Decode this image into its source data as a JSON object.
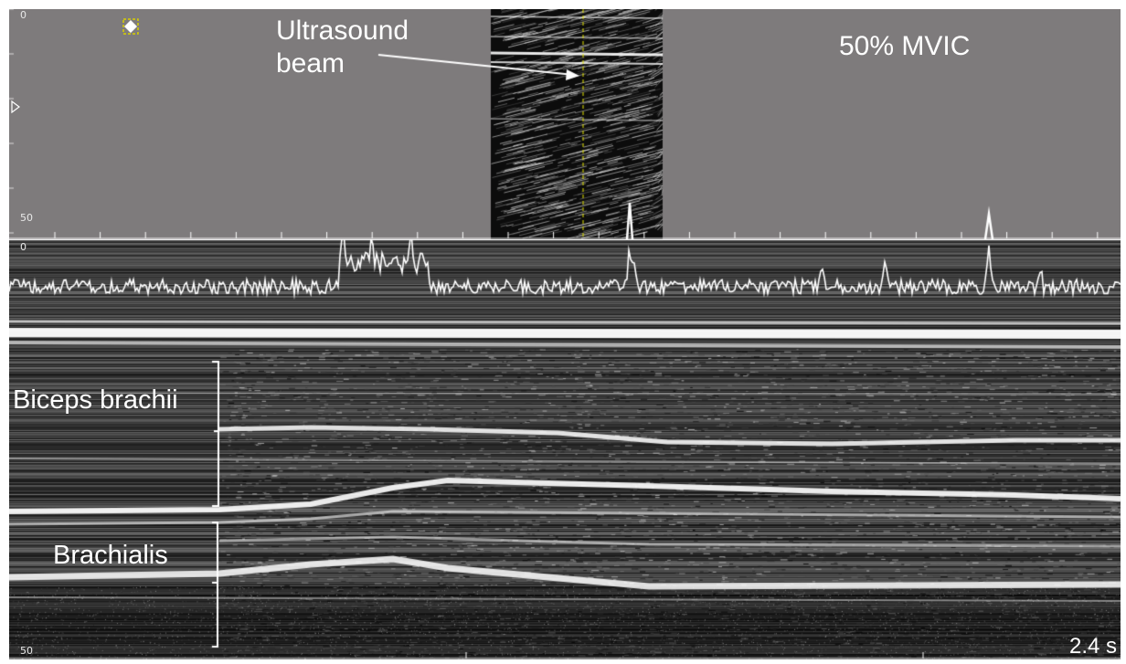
{
  "image": {
    "labels": {
      "ultrasound_beam_line1": "Ultrasound",
      "ultrasound_beam_line2": "beam",
      "mvic": "50% MVIC",
      "biceps": "Biceps brachii",
      "brachialis": "Brachialis",
      "time_scale": "2.4 s"
    },
    "scale": {
      "top_min": "0",
      "top_max": "50",
      "bottom_min": "0",
      "bottom_max": "50"
    },
    "icons": {
      "marker": "diamond-marker-icon",
      "playhead": "triangle-marker-icon"
    },
    "colors": {
      "panel_gray": "#7e7b7c",
      "beam_line": "#e6e600",
      "trace": "#ffffff"
    }
  }
}
